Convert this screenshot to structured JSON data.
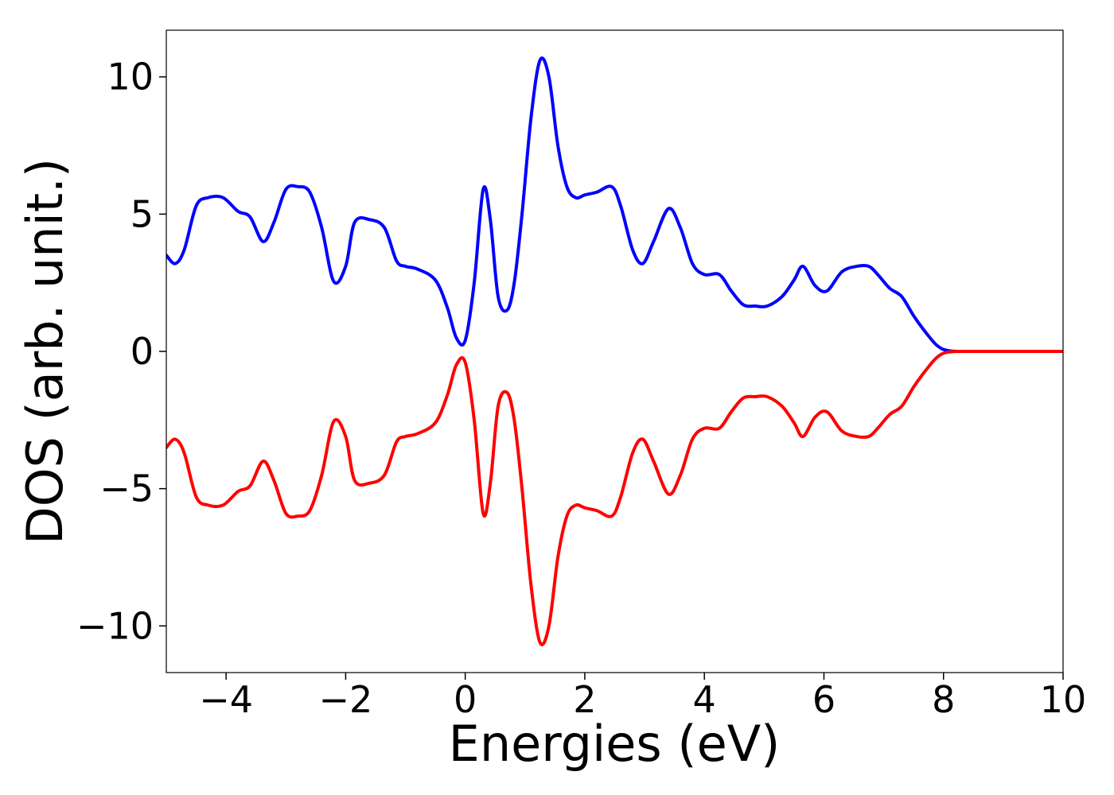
{
  "chart_data": {
    "type": "line",
    "title": "",
    "xlabel": "Energies (eV)",
    "ylabel": "DOS (arb. unit.)",
    "xlim": [
      -5,
      10
    ],
    "ylim": [
      -11.7,
      11.7
    ],
    "grid": false,
    "legend": "none",
    "x_ticks": [
      -4,
      -2,
      0,
      2,
      4,
      6,
      8,
      10
    ],
    "x_tick_labels": [
      "−4",
      "−2",
      "0",
      "2",
      "4",
      "6",
      "8",
      "10"
    ],
    "y_ticks": [
      10,
      5,
      0,
      -5,
      -10
    ],
    "y_tick_labels": [
      "10",
      "5",
      "0",
      "−5",
      "−10"
    ],
    "series": [
      {
        "color": "#0000ff",
        "x": [
          -5.0,
          -4.85,
          -4.7,
          -4.5,
          -4.3,
          -4.05,
          -3.8,
          -3.6,
          -3.38,
          -3.2,
          -3.0,
          -2.8,
          -2.6,
          -2.4,
          -2.2,
          -2.0,
          -1.85,
          -1.6,
          -1.35,
          -1.15,
          -1.0,
          -0.8,
          -0.5,
          -0.3,
          -0.15,
          0.0,
          0.15,
          0.3,
          0.42,
          0.55,
          0.7,
          0.82,
          0.95,
          1.1,
          1.25,
          1.4,
          1.55,
          1.7,
          1.85,
          2.0,
          2.2,
          2.45,
          2.6,
          2.8,
          2.97,
          3.15,
          3.4,
          3.6,
          3.8,
          4.0,
          4.25,
          4.45,
          4.65,
          4.85,
          5.05,
          5.3,
          5.5,
          5.65,
          5.85,
          6.05,
          6.3,
          6.55,
          6.75,
          6.9,
          7.1,
          7.3,
          7.5,
          7.7,
          7.9,
          8.1,
          8.5,
          9.0,
          10.0
        ],
        "y": [
          3.5,
          3.2,
          3.7,
          5.3,
          5.6,
          5.6,
          5.1,
          4.9,
          4.0,
          4.7,
          5.9,
          6.0,
          5.8,
          4.5,
          2.55,
          3.1,
          4.7,
          4.8,
          4.5,
          3.3,
          3.1,
          3.0,
          2.6,
          1.6,
          0.5,
          0.4,
          2.5,
          5.9,
          4.8,
          2.0,
          1.5,
          2.5,
          5.0,
          8.5,
          10.6,
          10.0,
          7.5,
          6.0,
          5.6,
          5.7,
          5.8,
          6.0,
          5.3,
          3.7,
          3.2,
          4.0,
          5.2,
          4.5,
          3.2,
          2.8,
          2.8,
          2.2,
          1.7,
          1.65,
          1.65,
          2.0,
          2.6,
          3.1,
          2.4,
          2.2,
          2.9,
          3.1,
          3.1,
          2.8,
          2.3,
          2.0,
          1.3,
          0.7,
          0.2,
          0.02,
          0.0,
          0.0,
          0.0
        ]
      },
      {
        "color": "#ff0000",
        "x": [
          -5.0,
          -4.85,
          -4.7,
          -4.5,
          -4.3,
          -4.05,
          -3.8,
          -3.6,
          -3.38,
          -3.2,
          -3.0,
          -2.8,
          -2.6,
          -2.4,
          -2.2,
          -2.0,
          -1.85,
          -1.6,
          -1.35,
          -1.15,
          -1.0,
          -0.8,
          -0.5,
          -0.3,
          -0.15,
          0.0,
          0.15,
          0.3,
          0.42,
          0.55,
          0.7,
          0.82,
          0.95,
          1.1,
          1.25,
          1.4,
          1.55,
          1.7,
          1.85,
          2.0,
          2.2,
          2.45,
          2.6,
          2.8,
          2.97,
          3.15,
          3.4,
          3.6,
          3.8,
          4.0,
          4.25,
          4.45,
          4.65,
          4.85,
          5.05,
          5.3,
          5.5,
          5.65,
          5.85,
          6.05,
          6.3,
          6.55,
          6.75,
          6.9,
          7.1,
          7.3,
          7.5,
          7.7,
          7.9,
          8.1,
          8.5,
          9.0,
          10.0
        ],
        "y": [
          -3.5,
          -3.2,
          -3.7,
          -5.3,
          -5.6,
          -5.6,
          -5.1,
          -4.9,
          -4.0,
          -4.7,
          -5.9,
          -6.0,
          -5.8,
          -4.5,
          -2.55,
          -3.1,
          -4.7,
          -4.8,
          -4.5,
          -3.3,
          -3.1,
          -3.0,
          -2.6,
          -1.6,
          -0.5,
          -0.4,
          -2.5,
          -5.9,
          -4.8,
          -2.0,
          -1.5,
          -2.5,
          -5.0,
          -8.5,
          -10.6,
          -10.0,
          -7.5,
          -6.0,
          -5.6,
          -5.7,
          -5.8,
          -6.0,
          -5.3,
          -3.7,
          -3.2,
          -4.0,
          -5.2,
          -4.5,
          -3.2,
          -2.8,
          -2.8,
          -2.2,
          -1.7,
          -1.65,
          -1.65,
          -2.0,
          -2.6,
          -3.1,
          -2.4,
          -2.2,
          -2.9,
          -3.1,
          -3.1,
          -2.8,
          -2.3,
          -2.0,
          -1.3,
          -0.7,
          -0.2,
          -0.02,
          0.0,
          0.0,
          0.0
        ]
      }
    ]
  }
}
